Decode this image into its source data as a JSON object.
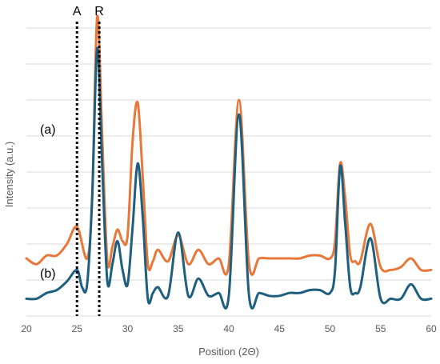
{
  "chart_data": {
    "type": "line",
    "title": "",
    "xlabel": "Position (2Θ)",
    "ylabel": "Intensity (a.u.)",
    "xlim": [
      20,
      60
    ],
    "x_ticks": [
      "20",
      "25",
      "30",
      "35",
      "40",
      "45",
      "50",
      "55",
      "60"
    ],
    "grid": "horizontal",
    "y_gridlines": 9,
    "colors": {
      "a": "#E8783A",
      "b": "#1E5E7E",
      "marker": "#000000",
      "grid": "#D9D9D9"
    },
    "markers": [
      {
        "label": "A",
        "x": 25
      },
      {
        "label": "R",
        "x": 27.2
      }
    ],
    "series": [
      {
        "name": "(a)",
        "baseline": 0.16,
        "x": [
          20,
          21,
          22,
          23,
          24,
          25,
          26,
          26.5,
          27,
          27.5,
          28,
          28.5,
          29,
          29.5,
          30,
          30.5,
          31,
          31.5,
          32,
          32.5,
          33,
          34,
          35,
          36,
          37,
          38,
          39,
          40,
          41,
          42,
          43,
          44,
          45,
          46,
          47,
          48,
          49,
          50,
          50.5,
          51,
          51.5,
          52,
          52.5,
          53,
          54,
          55,
          56,
          57,
          58,
          59,
          60
        ],
        "y": [
          0.04,
          0.02,
          0.05,
          0.05,
          0.09,
          0.15,
          0.04,
          0.25,
          0.88,
          0.45,
          0.03,
          0.08,
          0.14,
          0.1,
          0.12,
          0.45,
          0.58,
          0.32,
          0.02,
          0.03,
          0.07,
          0.03,
          0.12,
          0.02,
          0.07,
          0.02,
          0.04,
          0.02,
          0.59,
          0.02,
          0.04,
          0.04,
          0.04,
          0.04,
          0.04,
          0.05,
          0.05,
          0.04,
          0.1,
          0.37,
          0.25,
          0.05,
          0.03,
          0.03,
          0.16,
          0.01,
          0.0,
          0.01,
          0.04,
          0.0,
          0.0
        ]
      },
      {
        "name": "(b)",
        "baseline": 0.06,
        "x": [
          20,
          21,
          22,
          23,
          24,
          25,
          25.5,
          26,
          26.5,
          27,
          27.5,
          28,
          28.5,
          29,
          29.5,
          30,
          30.5,
          31,
          31.5,
          32,
          32.5,
          33,
          34,
          35,
          36,
          37,
          38,
          39,
          40,
          41,
          42,
          43,
          44,
          45,
          46,
          47,
          48,
          49,
          50,
          50.5,
          51,
          51.5,
          52,
          52.5,
          53,
          54,
          55,
          56,
          57,
          58,
          59,
          60
        ],
        "y": [
          0.0,
          0.0,
          0.02,
          0.03,
          0.06,
          0.1,
          0.04,
          0.05,
          0.35,
          0.87,
          0.45,
          0.06,
          0.12,
          0.2,
          0.1,
          0.05,
          0.25,
          0.47,
          0.28,
          0.0,
          0.02,
          0.04,
          0.01,
          0.23,
          0.01,
          0.07,
          0.01,
          0.02,
          0.01,
          0.64,
          0.01,
          0.02,
          0.01,
          0.01,
          0.02,
          0.02,
          0.03,
          0.03,
          0.02,
          0.1,
          0.46,
          0.26,
          0.04,
          0.02,
          0.04,
          0.21,
          0.0,
          0.0,
          0.0,
          0.05,
          0.0,
          0.0
        ]
      }
    ]
  }
}
